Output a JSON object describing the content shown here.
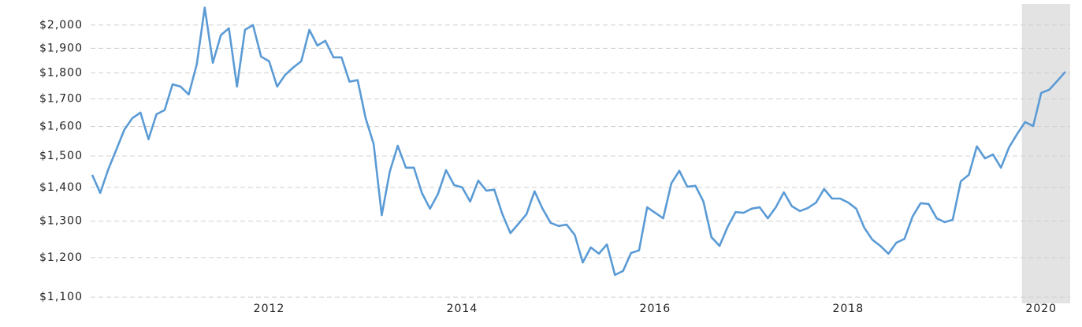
{
  "chart_data": {
    "type": "line",
    "log_scale_y": true,
    "grid": true,
    "x": [
      2010.167,
      2010.25,
      2010.333,
      2010.417,
      2010.5,
      2010.583,
      2010.667,
      2010.75,
      2010.833,
      2010.917,
      2011,
      2011.083,
      2011.167,
      2011.25,
      2011.333,
      2011.417,
      2011.5,
      2011.583,
      2011.667,
      2011.75,
      2011.833,
      2011.917,
      2012,
      2012.083,
      2012.167,
      2012.25,
      2012.333,
      2012.417,
      2012.5,
      2012.583,
      2012.667,
      2012.75,
      2012.833,
      2012.917,
      2013,
      2013.083,
      2013.167,
      2013.25,
      2013.333,
      2013.417,
      2013.5,
      2013.583,
      2013.667,
      2013.75,
      2013.833,
      2013.917,
      2014,
      2014.083,
      2014.167,
      2014.25,
      2014.333,
      2014.417,
      2014.5,
      2014.583,
      2014.667,
      2014.75,
      2014.833,
      2014.917,
      2015,
      2015.083,
      2015.167,
      2015.25,
      2015.333,
      2015.417,
      2015.5,
      2015.583,
      2015.667,
      2015.75,
      2015.833,
      2015.917,
      2016,
      2016.083,
      2016.167,
      2016.25,
      2016.333,
      2016.417,
      2016.5,
      2016.583,
      2016.667,
      2016.75,
      2016.833,
      2016.917,
      2017,
      2017.083,
      2017.167,
      2017.25,
      2017.333,
      2017.417,
      2017.5,
      2017.583,
      2017.667,
      2017.75,
      2017.833,
      2017.917,
      2018,
      2018.083,
      2018.167,
      2018.25,
      2018.333,
      2018.417,
      2018.5,
      2018.583,
      2018.667,
      2018.75,
      2018.833,
      2018.917,
      2019,
      2019.083,
      2019.167,
      2019.25,
      2019.333,
      2019.417,
      2019.5,
      2019.583,
      2019.667,
      2019.75,
      2019.833,
      2019.917,
      2020,
      2020.083,
      2020.167,
      2020.25
    ],
    "series": [
      {
        "color": "#5b9bd5",
        "values": [
          1439,
          1383,
          1456,
          1521,
          1589,
          1630,
          1650,
          1556,
          1644,
          1659,
          1756,
          1747,
          1717,
          1834,
          2078,
          1841,
          1956,
          1986,
          1747,
          1979,
          2000,
          1866,
          1847,
          1747,
          1793,
          1822,
          1847,
          1979,
          1912,
          1932,
          1863,
          1863,
          1766,
          1772,
          1630,
          1540,
          1317,
          1449,
          1534,
          1462,
          1462,
          1383,
          1336,
          1380,
          1454,
          1407,
          1400,
          1357,
          1421,
          1390,
          1393,
          1320,
          1266,
          1292,
          1320,
          1388,
          1336,
          1295,
          1286,
          1290,
          1261,
          1187,
          1227,
          1210,
          1235,
          1155,
          1165,
          1212,
          1219,
          1340,
          1324,
          1308,
          1412,
          1452,
          1402,
          1405,
          1357,
          1255,
          1231,
          1283,
          1326,
          1324,
          1336,
          1340,
          1308,
          1340,
          1385,
          1343,
          1329,
          1338,
          1354,
          1395,
          1366,
          1366,
          1354,
          1336,
          1281,
          1248,
          1231,
          1210,
          1240,
          1250,
          1313,
          1352,
          1350,
          1308,
          1297,
          1304,
          1419,
          1439,
          1532,
          1492,
          1505,
          1462,
          1529,
          1574,
          1616,
          1602,
          1723,
          1735,
          1769,
          1805
        ]
      }
    ],
    "xlim": [
      2010.167,
      2020.3
    ],
    "xticks": [
      2012,
      2014,
      2016,
      2018,
      2020
    ],
    "ylim": [
      1085,
      2095
    ],
    "yticks": [
      {
        "value": 1100,
        "label": "$1,100"
      },
      {
        "value": 1200,
        "label": "$1,200"
      },
      {
        "value": 1300,
        "label": "$1,300"
      },
      {
        "value": 1400,
        "label": "$1,400"
      },
      {
        "value": 1500,
        "label": "$1,500"
      },
      {
        "value": 1600,
        "label": "$1,600"
      },
      {
        "value": 1700,
        "label": "$1,700"
      },
      {
        "value": 1800,
        "label": "$1,800"
      },
      {
        "value": 1900,
        "label": "$1,900"
      },
      {
        "value": 2000,
        "label": "$2,000"
      }
    ],
    "shaded_x": [
      2019.8,
      2020.3
    ],
    "shade_color": "#e3e3e3"
  }
}
